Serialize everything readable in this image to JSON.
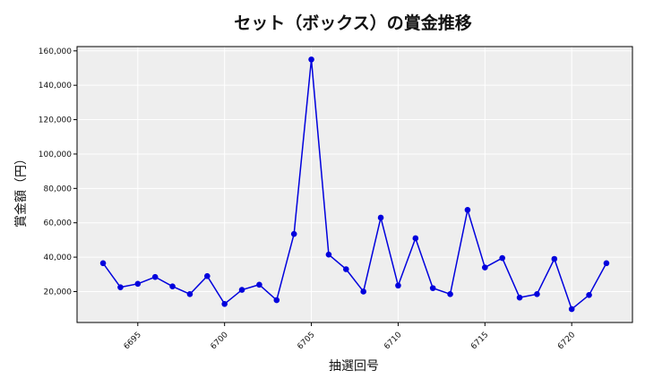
{
  "chart_data": {
    "type": "line",
    "title": "セット（ボックス）の賞金推移",
    "xlabel": "抽選回号",
    "ylabel": "賞金額（円）",
    "x": [
      6693,
      6694,
      6695,
      6696,
      6697,
      6698,
      6699,
      6700,
      6701,
      6702,
      6703,
      6704,
      6705,
      6706,
      6707,
      6708,
      6709,
      6710,
      6711,
      6712,
      6713,
      6714,
      6715,
      6716,
      6717,
      6718,
      6719,
      6720,
      6721,
      6722
    ],
    "series": [
      {
        "values": [
          36500,
          22500,
          24500,
          28500,
          23000,
          18500,
          29000,
          12800,
          21000,
          24000,
          15000,
          53500,
          155000,
          41500,
          33000,
          20000,
          63000,
          23500,
          51000,
          22000,
          18500,
          67500,
          34000,
          39500,
          16500,
          18500,
          39000,
          9800,
          18000,
          36500
        ]
      }
    ],
    "x_ticks": [
      6695,
      6700,
      6705,
      6710,
      6715,
      6720
    ],
    "x_tick_labels": [
      "6695",
      "6700",
      "6705",
      "6710",
      "6715",
      "6720"
    ],
    "y_ticks": [
      20000,
      40000,
      60000,
      80000,
      100000,
      120000,
      140000,
      160000
    ],
    "y_tick_labels": [
      "20,000",
      "40,000",
      "60,000",
      "80,000",
      "100,000",
      "120,000",
      "140,000",
      "160,000"
    ],
    "xlim": [
      6691.5,
      6723.5
    ],
    "ylim": [
      2000,
      162500
    ],
    "grid": true,
    "colors": {
      "line": "#0000dd",
      "marker": "#0000dd",
      "plot_bg": "#eeeeee",
      "grid": "#ffffff",
      "frame": "#000000"
    }
  }
}
